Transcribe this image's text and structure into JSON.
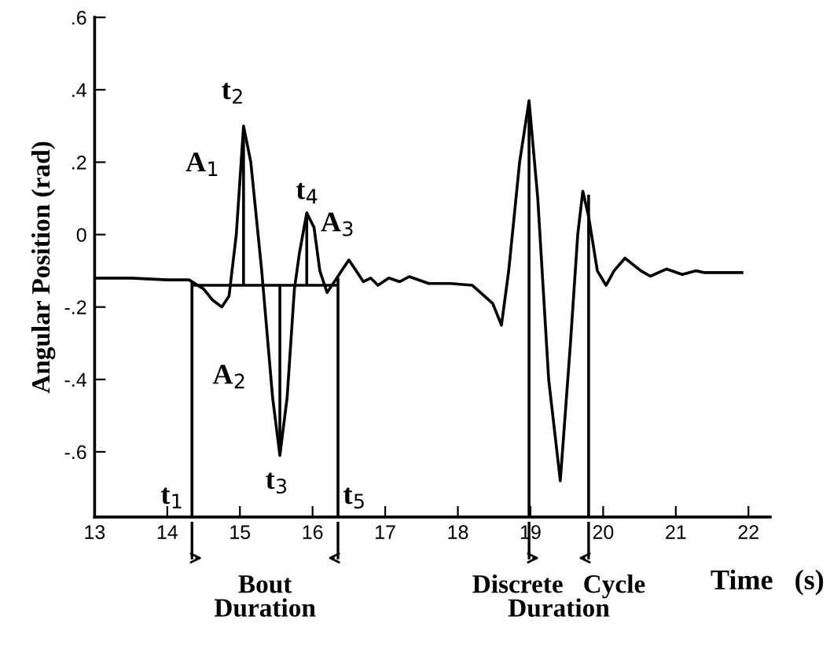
{
  "chart_data": {
    "type": "line",
    "xlabel": "Time   (s)",
    "ylabel": "Angular Position (rad)",
    "xlim": [
      13,
      22.3
    ],
    "ylim": [
      -0.78,
      0.6
    ],
    "xticks": [
      13,
      14,
      15,
      16,
      17,
      18,
      19,
      20,
      21,
      22
    ],
    "yticks": [
      {
        "value": 0.6,
        "label": ".6"
      },
      {
        "value": 0.4,
        "label": ".4"
      },
      {
        "value": 0.2,
        "label": ".2"
      },
      0,
      {
        "value": -0.2,
        "label": "-.2"
      },
      {
        "value": -0.4,
        "label": "-.4"
      },
      {
        "value": -0.6,
        "label": "-.6"
      }
    ],
    "grid": false,
    "legend": false,
    "line_style": "solid",
    "marker": "none",
    "series": [
      {
        "color": "#000000",
        "x": [
          13,
          13.5,
          14.0,
          14.3,
          14.5,
          14.62,
          14.75,
          14.85,
          14.95,
          15.05,
          15.15,
          15.3,
          15.45,
          15.55,
          15.65,
          15.75,
          15.82,
          15.92,
          16.02,
          16.1,
          16.2,
          16.3,
          16.4,
          16.5,
          16.6,
          16.7,
          16.8,
          16.9,
          17.05,
          17.2,
          17.33,
          17.6,
          17.9,
          18.2,
          18.48,
          18.6,
          18.7,
          18.85,
          18.98,
          19.1,
          19.25,
          19.41,
          19.55,
          19.65,
          19.72,
          19.8,
          19.92,
          20.04,
          20.15,
          20.3,
          20.52,
          20.65,
          20.87,
          21.09,
          21.28,
          21.4,
          21.93
        ],
        "values": [
          -0.12,
          -0.12,
          -0.125,
          -0.125,
          -0.15,
          -0.18,
          -0.2,
          -0.17,
          0.0,
          0.3,
          0.2,
          -0.1,
          -0.45,
          -0.61,
          -0.45,
          -0.15,
          -0.05,
          0.06,
          0.02,
          -0.1,
          -0.16,
          -0.13,
          -0.1,
          -0.07,
          -0.1,
          -0.13,
          -0.12,
          -0.14,
          -0.12,
          -0.13,
          -0.116,
          -0.135,
          -0.135,
          -0.14,
          -0.19,
          -0.25,
          -0.1,
          0.2,
          0.37,
          0.1,
          -0.4,
          -0.68,
          -0.3,
          0.0,
          0.12,
          0.05,
          -0.1,
          -0.14,
          -0.1,
          -0.065,
          -0.1,
          -0.115,
          -0.095,
          -0.11,
          -0.1,
          -0.105,
          -0.105
        ]
      },
      {
        "color": "#000000",
        "x": [
          14.34,
          16.35
        ],
        "values": [
          -0.14,
          -0.14
        ]
      },
      {
        "color": "#000000",
        "x": [
          15.05,
          15.05
        ],
        "values": [
          0.29,
          -0.14
        ]
      },
      {
        "color": "#000000",
        "x": [
          15.55,
          15.55
        ],
        "values": [
          -0.6,
          -0.14
        ]
      },
      {
        "color": "#000000",
        "x": [
          15.92,
          15.92
        ],
        "values": [
          0.05,
          -0.14
        ]
      },
      {
        "color": "#000000",
        "x": [
          14.34,
          14.34
        ],
        "values": [
          -0.13,
          -0.78
        ]
      },
      {
        "color": "#000000",
        "x": [
          16.35,
          16.35
        ],
        "values": [
          -0.12,
          -0.78
        ]
      },
      {
        "color": "#000000",
        "x": [
          18.98,
          18.98
        ],
        "values": [
          0.36,
          -0.78
        ]
      },
      {
        "color": "#000000",
        "x": [
          19.8,
          19.8
        ],
        "values": [
          0.11,
          -0.78
        ]
      }
    ],
    "annotations": [
      "t$_{1}$",
      "t$_{2}$",
      "t$_{3}$",
      "t$_{4}$",
      "t$_{5}$",
      "A$_{1}$",
      "A$_{2}$",
      "A$_{3}$",
      "Bout\nDuration",
      "Discrete   Cycle\nDuration"
    ]
  }
}
